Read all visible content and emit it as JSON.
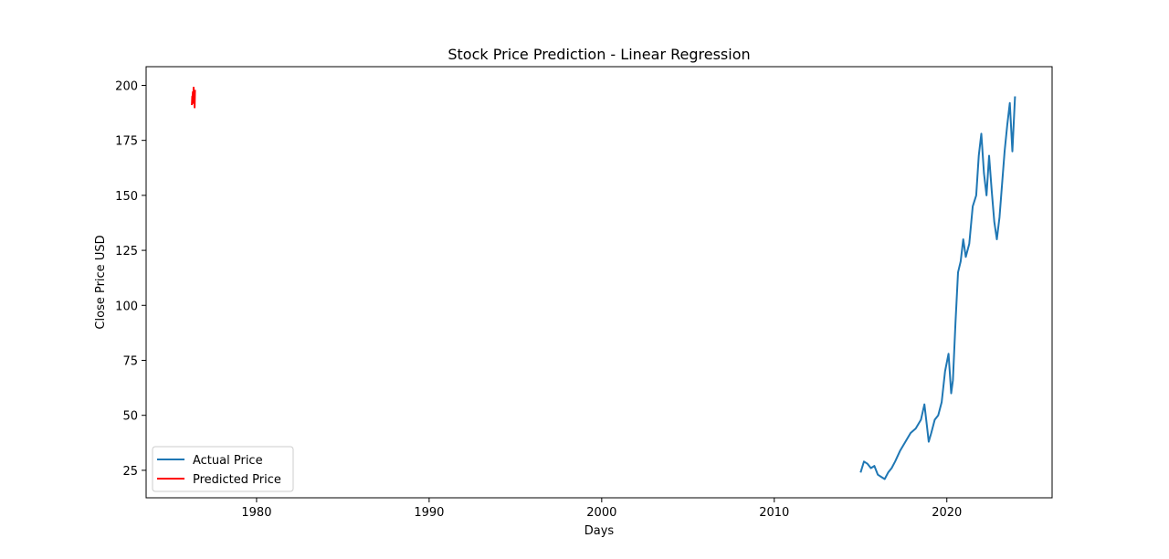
{
  "chart_data": {
    "type": "line",
    "title": "Stock Price Prediction - Linear Regression",
    "xlabel": "Days",
    "ylabel": "Close Price USD",
    "xlim": [
      1973.6,
      2026.1
    ],
    "ylim": [
      12.5,
      208.5
    ],
    "xticks": [
      1980,
      1990,
      2000,
      2010,
      2020
    ],
    "yticks": [
      25,
      50,
      75,
      100,
      125,
      150,
      175,
      200
    ],
    "grid": false,
    "legend": {
      "placement": "lower-left",
      "entries": [
        "Actual Price",
        "Predicted Price"
      ]
    },
    "series": [
      {
        "name": "Actual Price",
        "color": "#1f77b4",
        "x": [
          2015.0,
          2015.2,
          2015.4,
          2015.6,
          2015.8,
          2016.0,
          2016.2,
          2016.4,
          2016.6,
          2016.8,
          2017.0,
          2017.3,
          2017.6,
          2017.9,
          2018.2,
          2018.5,
          2018.7,
          2018.85,
          2018.95,
          2019.1,
          2019.3,
          2019.5,
          2019.7,
          2019.9,
          2020.1,
          2020.25,
          2020.35,
          2020.5,
          2020.65,
          2020.8,
          2020.95,
          2021.1,
          2021.3,
          2021.5,
          2021.7,
          2021.85,
          2022.0,
          2022.15,
          2022.3,
          2022.45,
          2022.6,
          2022.75,
          2022.9,
          2023.05,
          2023.2,
          2023.35,
          2023.5,
          2023.65,
          2023.8,
          2023.95
        ],
        "y": [
          24,
          29,
          28,
          26,
          27,
          23,
          22,
          21,
          24,
          26,
          29,
          34,
          38,
          42,
          44,
          48,
          55,
          45,
          38,
          42,
          48,
          50,
          56,
          70,
          78,
          60,
          66,
          92,
          115,
          120,
          130,
          122,
          128,
          145,
          150,
          168,
          178,
          160,
          150,
          168,
          152,
          138,
          130,
          140,
          155,
          170,
          182,
          192,
          170,
          195
        ]
      },
      {
        "name": "Predicted Price",
        "color": "#ff0000",
        "x": [
          1976.25,
          1976.27,
          1976.29,
          1976.31,
          1976.33,
          1976.35,
          1976.37,
          1976.39,
          1976.41,
          1976.43
        ],
        "y": [
          191,
          195,
          193,
          197,
          192,
          199,
          194,
          196,
          190,
          198
        ]
      }
    ]
  }
}
